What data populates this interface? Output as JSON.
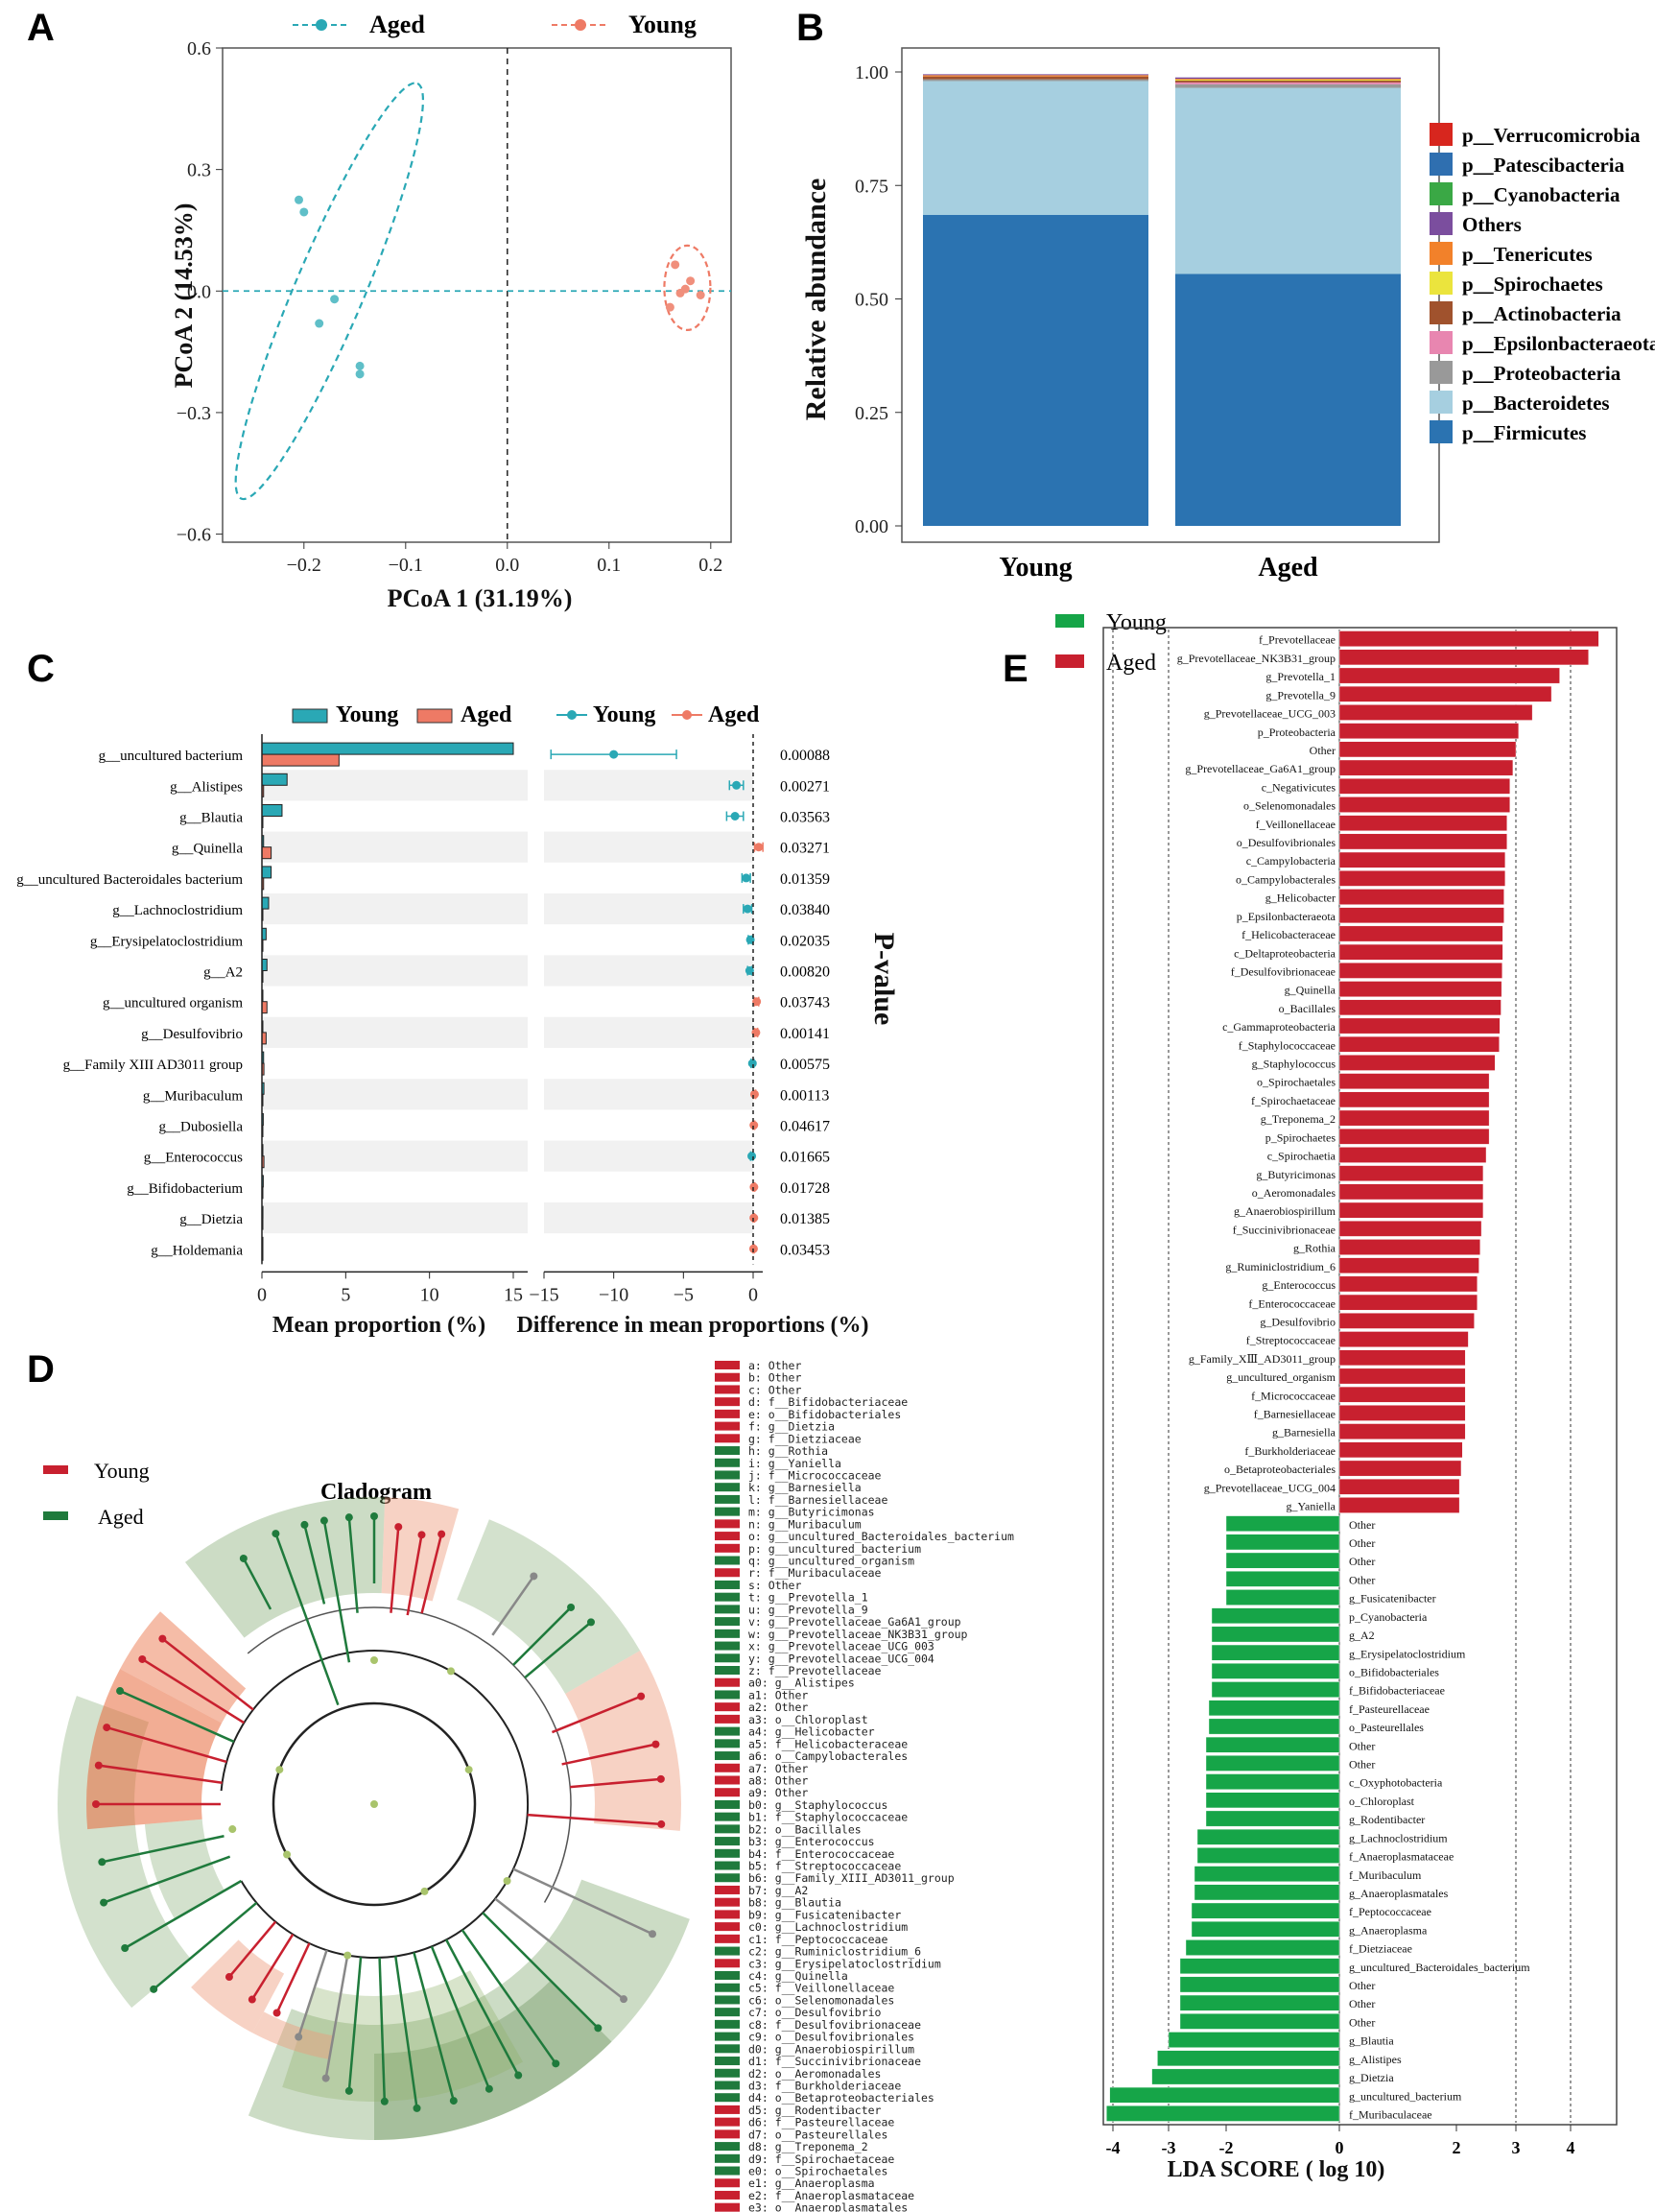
{
  "panel_labels": {
    "a": "A",
    "b": "B",
    "c": "C",
    "d": "D",
    "e": "E"
  },
  "colors": {
    "aged_teal": "#2aa8b5",
    "young_salmon": "#ee7a65",
    "firm": "#2b73b1",
    "bact": "#a6cfe0",
    "young_red": "#c8202f",
    "aged_green": "#16a548",
    "tree_green": "#6e9b59"
  },
  "chart_data": [
    {
      "id": "A",
      "type": "scatter",
      "xlabel": "PCoA 1 (31.19%)",
      "ylabel": "PCoA 2 (14.53%)",
      "xlim": [
        -0.28,
        0.22
      ],
      "ylim": [
        -0.62,
        0.6
      ],
      "xticks": [
        "−0.2",
        "−0.1",
        "0.0",
        "0.1",
        "0.2"
      ],
      "yticks": [
        "0.6",
        "0.3",
        "0.0",
        "−0.3",
        "−0.6"
      ],
      "legend": [
        "Aged",
        "Young"
      ],
      "series": [
        {
          "name": "Aged",
          "points": [
            [
              -0.205,
              0.225
            ],
            [
              -0.2,
              0.195
            ],
            [
              -0.17,
              -0.02
            ],
            [
              -0.185,
              -0.08
            ],
            [
              -0.145,
              -0.185
            ],
            [
              -0.145,
              -0.205
            ]
          ]
        },
        {
          "name": "Young",
          "points": [
            [
              0.165,
              0.065
            ],
            [
              0.18,
              0.025
            ],
            [
              0.17,
              -0.005
            ],
            [
              0.19,
              -0.01
            ],
            [
              0.16,
              -0.04
            ],
            [
              0.175,
              0.005
            ]
          ]
        }
      ]
    },
    {
      "id": "B",
      "type": "bar",
      "ylabel": "Relative abundance",
      "categories": [
        "Young",
        "Aged"
      ],
      "yticks": [
        "1.00",
        "0.75",
        "0.50",
        "0.25",
        "0.00"
      ],
      "legend": [
        "p__Verrucomicrobia",
        "p__Patescibacteria",
        "p__Cyanobacteria",
        "Others",
        "p__Tenericutes",
        "p__Spirochaetes",
        "p__Actinobacteria",
        "p__Epsilonbacteraeota",
        "p__Proteobacteria",
        "p__Bacteroidetes",
        "p__Firmicutes"
      ],
      "legend_colors": [
        "#d7261e",
        "#2f6fb0",
        "#3aa845",
        "#7b4e9e",
        "#f2812a",
        "#ebe43d",
        "#a0522d",
        "#e886b0",
        "#999999",
        "#a6cfe0",
        "#2b73b1"
      ],
      "series": [
        {
          "name": "p__Firmicutes",
          "values": [
            0.685,
            0.555
          ]
        },
        {
          "name": "p__Bacteroidetes",
          "values": [
            0.295,
            0.41
          ]
        },
        {
          "name": "p__Proteobacteria",
          "values": [
            0.004,
            0.008
          ]
        },
        {
          "name": "p__Epsilonbacteraeota",
          "values": [
            0.0,
            0.004
          ]
        },
        {
          "name": "p__Actinobacteria",
          "values": [
            0.006,
            0.004
          ]
        },
        {
          "name": "p__Spirochaetes",
          "values": [
            0.0,
            0.002
          ]
        },
        {
          "name": "p__Tenericutes",
          "values": [
            0.003,
            0.002
          ]
        },
        {
          "name": "Others",
          "values": [
            0.002,
            0.003
          ]
        }
      ]
    },
    {
      "id": "C",
      "type": "bar",
      "legend_left": [
        "Young",
        "Aged"
      ],
      "legend_right": [
        "Young",
        "Aged"
      ],
      "ylabel_right": "P-value",
      "xlabel_left": "Mean proportion (%)",
      "xlabel_right": "Difference in mean proportions (%)",
      "xticks_left": [
        "0",
        "5",
        "10",
        "15"
      ],
      "xticks_right": [
        "−15",
        "−10",
        "−5",
        "0"
      ],
      "categories": [
        "g__uncultured bacterium",
        "g__Alistipes",
        "g__Blautia",
        "g__Quinella",
        "g__uncultured Bacteroidales bacterium",
        "g__Lachnoclostridium",
        "g__Erysipelatoclostridium",
        "g__A2",
        "g__uncultured organism",
        "g__Desulfovibrio",
        "g__Family XIII AD3011 group",
        "g__Muribaculum",
        "g__Dubosiella",
        "g__Enterococcus",
        "g__Bifidobacterium",
        "g__Dietzia",
        "g__Holdemania"
      ],
      "young": [
        15.0,
        1.5,
        1.2,
        0.1,
        0.55,
        0.4,
        0.25,
        0.3,
        0.05,
        0.05,
        0.1,
        0.12,
        0.08,
        0.04,
        0.08,
        0.06,
        0.05
      ],
      "aged": [
        4.6,
        0.1,
        0.05,
        0.55,
        0.1,
        0.05,
        0.05,
        0.05,
        0.3,
        0.25,
        0.12,
        0.02,
        0.05,
        0.12,
        0.02,
        0.02,
        0.02
      ],
      "diff": [
        -10.0,
        -1.2,
        -1.3,
        0.4,
        -0.5,
        -0.4,
        -0.2,
        -0.25,
        0.25,
        0.2,
        -0.05,
        0.1,
        0.05,
        -0.1,
        0.06,
        0.05,
        0.03
      ],
      "ci": [
        4.5,
        0.5,
        0.6,
        0.3,
        0.3,
        0.3,
        0.15,
        0.15,
        0.15,
        0.12,
        0.1,
        0.08,
        0.06,
        0.08,
        0.06,
        0.05,
        0.04
      ],
      "pvalues": [
        "0.00088",
        "0.00271",
        "0.03563",
        "0.03271",
        "0.01359",
        "0.03840",
        "0.02035",
        "0.00820",
        "0.03743",
        "0.00141",
        "0.00575",
        "0.00113",
        "0.04617",
        "0.01665",
        "0.01728",
        "0.01385",
        "0.03453"
      ]
    },
    {
      "id": "E",
      "type": "bar",
      "xlabel": "LDA SCORE ( log 10)",
      "xlim": [
        -4.3,
        4.9
      ],
      "xticks": [
        "-4",
        "-3",
        "-2",
        "0",
        "2",
        "3",
        "4"
      ],
      "legend": [
        "Young",
        "Aged"
      ],
      "labels": [
        "f_Prevotellaceae",
        "g_Prevotellaceae_NK3B31_group",
        "g_Prevotella_1",
        "g_Prevotella_9",
        "g_Prevotellaceae_UCG_003",
        "p_Proteobacteria",
        "Other",
        "g_Prevotellaceae_Ga6A1_group",
        "c_Negativicutes",
        "o_Selenomonadales",
        "f_Veillonellaceae",
        "o_Desulfovibrionales",
        "c_Campylobacteria",
        "o_Campylobacterales",
        "g_Helicobacter",
        "p_Epsilonbacteraeota",
        "f_Helicobacteraceae",
        "c_Deltaproteobacteria",
        "f_Desulfovibrionaceae",
        "g_Quinella",
        "o_Bacillales",
        "c_Gammaproteobacteria",
        "f_Staphylococcaceae",
        "g_Staphylococcus",
        "o_Spirochaetales",
        "f_Spirochaetaceae",
        "g_Treponema_2",
        "p_Spirochaetes",
        "c_Spirochaetia",
        "g_Butyricimonas",
        "o_Aeromonadales",
        "g_Anaerobiospirillum",
        "f_Succinivibrionaceae",
        "g_Rothia",
        "g_Ruminiclostridium_6",
        "g_Enterococcus",
        "f_Enterococcaceae",
        "g_Desulfovibrio",
        "f_Streptococcaceae",
        "g_Family_XⅢ_AD3011_group",
        "g_uncultured_organism",
        "f_Micrococcaceae",
        "f_Barnesiellaceae",
        "g_Barnesiella",
        "f_Burkholderiaceae",
        "o_Betaproteobacteriales",
        "g_Prevotellaceae_UCG_004",
        "g_Yaniella",
        "Other",
        "Other",
        "Other",
        "Other",
        "g_Fusicatenibacter",
        "p_Cyanobacteria",
        "g_A2",
        "g_Erysipelatoclostridium",
        "o_Bifidobacteriales",
        "f_Bifidobacteriaceae",
        "f_Pasteurellaceae",
        "o_Pasteurellales",
        "Other",
        "Other",
        "c_Oxyphotobacteria",
        "o_Chloroplast",
        "g_Rodentibacter",
        "g_Lachnoclostridium",
        "f_Anaeroplasmataceae",
        "f_Muribaculum",
        "g_Anaeroplasmatales",
        "f_Peptococcaceae",
        "g_Anaeroplasma",
        "f_Dietziaceae",
        "g_uncultured_Bacteroidales_bacterium",
        "Other",
        "Other",
        "Other",
        "g_Blautia",
        "g_Alistipes",
        "g_Dietzia",
        "g_uncultured_bacterium",
        "f_Muribaculaceae"
      ],
      "values": [
        4.55,
        4.35,
        3.8,
        3.65,
        3.3,
        3.05,
        3.0,
        2.95,
        2.9,
        2.9,
        2.85,
        2.85,
        2.82,
        2.82,
        2.8,
        2.8,
        2.78,
        2.78,
        2.77,
        2.76,
        2.75,
        2.73,
        2.72,
        2.65,
        2.55,
        2.55,
        2.55,
        2.55,
        2.5,
        2.45,
        2.45,
        2.45,
        2.42,
        2.4,
        2.38,
        2.35,
        2.35,
        2.3,
        2.2,
        2.15,
        2.15,
        2.15,
        2.15,
        2.15,
        2.1,
        2.08,
        2.05,
        2.05,
        -2.0,
        -2.0,
        -2.0,
        -2.0,
        -2.0,
        -2.25,
        -2.25,
        -2.25,
        -2.25,
        -2.25,
        -2.3,
        -2.3,
        -2.35,
        -2.35,
        -2.35,
        -2.35,
        -2.35,
        -2.5,
        -2.5,
        -2.55,
        -2.55,
        -2.6,
        -2.6,
        -2.7,
        -2.8,
        -2.8,
        -2.8,
        -2.8,
        -3.0,
        -3.2,
        -3.3,
        -4.05,
        -4.1
      ]
    }
  ],
  "cladogram": {
    "title": "Cladogram",
    "legend": [
      "Young",
      "Aged"
    ],
    "key_entries": [
      {
        "t": "a: Other",
        "c": "young"
      },
      {
        "t": "b: Other",
        "c": "young"
      },
      {
        "t": "c: Other",
        "c": "young"
      },
      {
        "t": "d: f__Bifidobacteriaceae",
        "c": "young"
      },
      {
        "t": "e: o__Bifidobacteriales",
        "c": "young"
      },
      {
        "t": "f: g__Dietzia",
        "c": "young"
      },
      {
        "t": "g: f__Dietziaceae",
        "c": "young"
      },
      {
        "t": "h: g__Rothia",
        "c": "aged"
      },
      {
        "t": "i: g__Yaniella",
        "c": "aged"
      },
      {
        "t": "j: f__Micrococcaceae",
        "c": "aged"
      },
      {
        "t": "k: g__Barnesiella",
        "c": "aged"
      },
      {
        "t": "l: f__Barnesiellaceae",
        "c": "aged"
      },
      {
        "t": "m: g__Butyricimonas",
        "c": "aged"
      },
      {
        "t": "n: g__Muribaculum",
        "c": "young"
      },
      {
        "t": "o: g__uncultured_Bacteroidales_bacterium",
        "c": "young"
      },
      {
        "t": "p: g__uncultured_bacterium",
        "c": "young"
      },
      {
        "t": "q: g__uncultured_organism",
        "c": "aged"
      },
      {
        "t": "r: f__Muribaculaceae",
        "c": "young"
      },
      {
        "t": "s: Other",
        "c": "aged"
      },
      {
        "t": "t: g__Prevotella_1",
        "c": "aged"
      },
      {
        "t": "u: g__Prevotella_9",
        "c": "aged"
      },
      {
        "t": "v: g__Prevotellaceae_Ga6A1_group",
        "c": "aged"
      },
      {
        "t": "w: g__Prevotellaceae_NK3B31_group",
        "c": "aged"
      },
      {
        "t": "x: g__Prevotellaceae_UCG_003",
        "c": "aged"
      },
      {
        "t": "y: g__Prevotellaceae_UCG_004",
        "c": "aged"
      },
      {
        "t": "z: f__Prevotellaceae",
        "c": "aged"
      },
      {
        "t": "a0: g__Alistipes",
        "c": "young"
      },
      {
        "t": "a1: Other",
        "c": "aged"
      },
      {
        "t": "a2: Other",
        "c": "young"
      },
      {
        "t": "a3: o__Chloroplast",
        "c": "young"
      },
      {
        "t": "a4: g__Helicobacter",
        "c": "aged"
      },
      {
        "t": "a5: f__Helicobacteraceae",
        "c": "aged"
      },
      {
        "t": "a6: o__Campylobacterales",
        "c": "aged"
      },
      {
        "t": "a7: Other",
        "c": "young"
      },
      {
        "t": "a8: Other",
        "c": "young"
      },
      {
        "t": "a9: Other",
        "c": "young"
      },
      {
        "t": "b0: g__Staphylococcus",
        "c": "aged"
      },
      {
        "t": "b1: f__Staphylococcaceae",
        "c": "aged"
      },
      {
        "t": "b2: o__Bacillales",
        "c": "aged"
      },
      {
        "t": "b3: g__Enterococcus",
        "c": "aged"
      },
      {
        "t": "b4: f__Enterococcaceae",
        "c": "aged"
      },
      {
        "t": "b5: f__Streptococcaceae",
        "c": "aged"
      },
      {
        "t": "b6: g__Family_XIII_AD3011_group",
        "c": "aged"
      },
      {
        "t": "b7: g__A2",
        "c": "young"
      },
      {
        "t": "b8: g__Blautia",
        "c": "young"
      },
      {
        "t": "b9: g__Fusicatenibacter",
        "c": "young"
      },
      {
        "t": "c0: g__Lachnoclostridium",
        "c": "young"
      },
      {
        "t": "c1: f__Peptococcaceae",
        "c": "young"
      },
      {
        "t": "c2: g__Ruminiclostridium_6",
        "c": "aged"
      },
      {
        "t": "c3: g__Erysipelatoclostridium",
        "c": "young"
      },
      {
        "t": "c4: g__Quinella",
        "c": "aged"
      },
      {
        "t": "c5: f__Veillonellaceae",
        "c": "aged"
      },
      {
        "t": "c6: o__Selenomonadales",
        "c": "aged"
      },
      {
        "t": "c7: o__Desulfovibrio",
        "c": "aged"
      },
      {
        "t": "c8: f__Desulfovibrionaceae",
        "c": "aged"
      },
      {
        "t": "c9: o__Desulfovibrionales",
        "c": "aged"
      },
      {
        "t": "d0: g__Anaerobiospirillum",
        "c": "aged"
      },
      {
        "t": "d1: f__Succinivibrionaceae",
        "c": "aged"
      },
      {
        "t": "d2: o__Aeromonadales",
        "c": "aged"
      },
      {
        "t": "d3: f__Burkholderiaceae",
        "c": "aged"
      },
      {
        "t": "d4: o__Betaproteobacteriales",
        "c": "aged"
      },
      {
        "t": "d5: g__Rodentibacter",
        "c": "young"
      },
      {
        "t": "d6: f__Pasteurellaceae",
        "c": "young"
      },
      {
        "t": "d7: o__Pasteurellales",
        "c": "young"
      },
      {
        "t": "d8: g__Treponema_2",
        "c": "aged"
      },
      {
        "t": "d9: f__Spirochaetaceae",
        "c": "aged"
      },
      {
        "t": "e0: o__Spirochaetales",
        "c": "aged"
      },
      {
        "t": "e1: g__Anaeroplasma",
        "c": "young"
      },
      {
        "t": "e2: f__Anaeroplasmataceae",
        "c": "young"
      },
      {
        "t": "e3: o__Anaeroplasmatales",
        "c": "young"
      }
    ]
  }
}
